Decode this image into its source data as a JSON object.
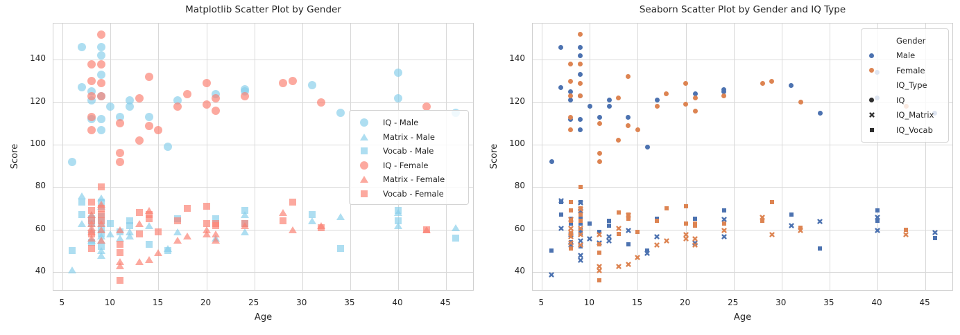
{
  "figure": {
    "background": "#ffffff"
  },
  "chart_data": {
    "type": "scatter",
    "xlabel": "Age",
    "ylabel": "Score",
    "x_ticks": [
      5,
      10,
      15,
      20,
      25,
      30,
      35,
      40,
      45
    ],
    "y_ticks": [
      40,
      60,
      80,
      100,
      120,
      140
    ],
    "xlim": [
      4.04,
      47.96
    ],
    "ylim": [
      30.9,
      157.1
    ],
    "grid": true,
    "iq_types": [
      "IQ",
      "IQ_Matrix",
      "IQ_Vocab"
    ],
    "plots": [
      {
        "title": "Matplotlib Scatter Plot by Gender",
        "style": "matplotlib",
        "colors": {
          "Male": "#87CEEB",
          "Female": "#FA8072"
        },
        "alpha": 0.68,
        "legend_position": "center-right",
        "legend": [
          {
            "label": "IQ - Male",
            "marker": "circle",
            "gender": "Male"
          },
          {
            "label": "Matrix - Male",
            "marker": "triangle",
            "gender": "Male"
          },
          {
            "label": "Vocab - Male",
            "marker": "square",
            "gender": "Male"
          },
          {
            "label": "IQ - Female",
            "marker": "circle",
            "gender": "Female"
          },
          {
            "label": "Matrix - Female",
            "marker": "triangle",
            "gender": "Female"
          },
          {
            "label": "Vocab - Female",
            "marker": "square",
            "gender": "Female"
          }
        ]
      },
      {
        "title": "Seaborn Scatter Plot by Gender and IQ Type",
        "style": "seaborn",
        "colors": {
          "Male": "#4C72B0",
          "Female": "#DD8452"
        },
        "alpha": 1.0,
        "legend_position": "upper-right",
        "legend": [
          {
            "label": "Gender",
            "type": "header"
          },
          {
            "label": "Male",
            "marker": "circle",
            "color": "#4C72B0"
          },
          {
            "label": "Female",
            "marker": "circle",
            "color": "#DD8452"
          },
          {
            "label": "IQ_Type",
            "type": "header"
          },
          {
            "label": "IQ",
            "marker": "circle",
            "color": "#2e2e2e"
          },
          {
            "label": "IQ_Matrix",
            "marker": "x",
            "color": "#2e2e2e"
          },
          {
            "label": "IQ_Vocab",
            "marker": "square",
            "color": "#2e2e2e"
          }
        ]
      }
    ],
    "subjects": [
      {
        "age": 6,
        "gender": "Male",
        "iq": 92,
        "matrix": 41,
        "vocab": 50
      },
      {
        "age": 7,
        "gender": "Male",
        "iq": 146,
        "matrix": 76,
        "vocab": 73
      },
      {
        "age": 7,
        "gender": "Male",
        "iq": 127,
        "matrix": 63,
        "vocab": 67
      },
      {
        "age": 8,
        "gender": "Male",
        "iq": 125,
        "matrix": 67,
        "vocab": 65
      },
      {
        "age": 8,
        "gender": "Male",
        "iq": 121,
        "matrix": 60,
        "vocab": 63
      },
      {
        "age": 8,
        "gender": "Male",
        "iq": 112,
        "matrix": 55,
        "vocab": 54
      },
      {
        "age": 9,
        "gender": "Male",
        "iq": 146,
        "matrix": 75,
        "vocab": 73
      },
      {
        "age": 9,
        "gender": "Male",
        "iq": 142,
        "matrix": 71,
        "vocab": 66
      },
      {
        "age": 9,
        "gender": "Male",
        "iq": 133,
        "matrix": 57,
        "vocab": 60
      },
      {
        "age": 9,
        "gender": "Male",
        "iq": 123,
        "matrix": 55,
        "vocab": 63
      },
      {
        "age": 9,
        "gender": "Male",
        "iq": 112,
        "matrix": 50,
        "vocab": 58
      },
      {
        "age": 9,
        "gender": "Male",
        "iq": 107,
        "matrix": 48,
        "vocab": 52
      },
      {
        "age": 10,
        "gender": "Male",
        "iq": 118,
        "matrix": 58,
        "vocab": 63
      },
      {
        "age": 11,
        "gender": "Male",
        "iq": 113,
        "matrix": 56,
        "vocab": 59
      },
      {
        "age": 12,
        "gender": "Male",
        "iq": 121,
        "matrix": 59,
        "vocab": 64
      },
      {
        "age": 12,
        "gender": "Male",
        "iq": 118,
        "matrix": 57,
        "vocab": 62
      },
      {
        "age": 14,
        "gender": "Male",
        "iq": 113,
        "matrix": 62,
        "vocab": 53
      },
      {
        "age": 16,
        "gender": "Male",
        "iq": 99,
        "matrix": 51,
        "vocab": 50
      },
      {
        "age": 17,
        "gender": "Male",
        "iq": 121,
        "matrix": 59,
        "vocab": 65
      },
      {
        "age": 21,
        "gender": "Male",
        "iq": 124,
        "matrix": 56,
        "vocab": 65
      },
      {
        "age": 24,
        "gender": "Male",
        "iq": 126,
        "matrix": 67,
        "vocab": 69
      },
      {
        "age": 24,
        "gender": "Male",
        "iq": 125,
        "matrix": 59,
        "vocab": 63
      },
      {
        "age": 31,
        "gender": "Male",
        "iq": 128,
        "matrix": 64,
        "vocab": 67
      },
      {
        "age": 34,
        "gender": "Male",
        "iq": 115,
        "matrix": 66,
        "vocab": 51
      },
      {
        "age": 40,
        "gender": "Male",
        "iq": 134,
        "matrix": 68,
        "vocab": 69
      },
      {
        "age": 40,
        "gender": "Male",
        "iq": 122,
        "matrix": 62,
        "vocab": 64
      },
      {
        "age": 46,
        "gender": "Male",
        "iq": 115,
        "matrix": 61,
        "vocab": 56
      },
      {
        "age": 8,
        "gender": "Female",
        "iq": 138,
        "matrix": 67,
        "vocab": 73
      },
      {
        "age": 8,
        "gender": "Female",
        "iq": 130,
        "matrix": 63,
        "vocab": 69
      },
      {
        "age": 8,
        "gender": "Female",
        "iq": 123,
        "matrix": 61,
        "vocab": 64
      },
      {
        "age": 8,
        "gender": "Female",
        "iq": 113,
        "matrix": 59,
        "vocab": 58
      },
      {
        "age": 8,
        "gender": "Female",
        "iq": 107,
        "matrix": 56,
        "vocab": 51
      },
      {
        "age": 9,
        "gender": "Female",
        "iq": 152,
        "matrix": 72,
        "vocab": 80
      },
      {
        "age": 9,
        "gender": "Female",
        "iq": 138,
        "matrix": 63,
        "vocab": 70
      },
      {
        "age": 9,
        "gender": "Female",
        "iq": 129,
        "matrix": 60,
        "vocab": 67
      },
      {
        "age": 9,
        "gender": "Female",
        "iq": 123,
        "matrix": 55,
        "vocab": 64
      },
      {
        "age": 11,
        "gender": "Female",
        "iq": 110,
        "matrix": 60,
        "vocab": 53
      },
      {
        "age": 11,
        "gender": "Female",
        "iq": 96,
        "matrix": 45,
        "vocab": 49
      },
      {
        "age": 11,
        "gender": "Female",
        "iq": 92,
        "matrix": 43,
        "vocab": 36
      },
      {
        "age": 13,
        "gender": "Female",
        "iq": 122,
        "matrix": 63,
        "vocab": 68
      },
      {
        "age": 13,
        "gender": "Female",
        "iq": 102,
        "matrix": 45,
        "vocab": 58
      },
      {
        "age": 14,
        "gender": "Female",
        "iq": 132,
        "matrix": 69,
        "vocab": 67
      },
      {
        "age": 14,
        "gender": "Female",
        "iq": 109,
        "matrix": 46,
        "vocab": 65
      },
      {
        "age": 15,
        "gender": "Female",
        "iq": 107,
        "matrix": 49,
        "vocab": 59
      },
      {
        "age": 17,
        "gender": "Female",
        "iq": 118,
        "matrix": 55,
        "vocab": 64
      },
      {
        "age": 18,
        "gender": "Female",
        "iq": 124,
        "matrix": 57,
        "vocab": 70
      },
      {
        "age": 20,
        "gender": "Female",
        "iq": 129,
        "matrix": 60,
        "vocab": 71
      },
      {
        "age": 20,
        "gender": "Female",
        "iq": 119,
        "matrix": 58,
        "vocab": 63
      },
      {
        "age": 21,
        "gender": "Female",
        "iq": 122,
        "matrix": 58,
        "vocab": 63
      },
      {
        "age": 21,
        "gender": "Female",
        "iq": 116,
        "matrix": 55,
        "vocab": 62
      },
      {
        "age": 24,
        "gender": "Female",
        "iq": 123,
        "matrix": 62,
        "vocab": 63
      },
      {
        "age": 28,
        "gender": "Female",
        "iq": 129,
        "matrix": 68,
        "vocab": 64
      },
      {
        "age": 29,
        "gender": "Female",
        "iq": 130,
        "matrix": 60,
        "vocab": 73
      },
      {
        "age": 32,
        "gender": "Female",
        "iq": 120,
        "matrix": 62,
        "vocab": 61
      },
      {
        "age": 43,
        "gender": "Female",
        "iq": 118,
        "matrix": 60,
        "vocab": 60
      }
    ]
  }
}
